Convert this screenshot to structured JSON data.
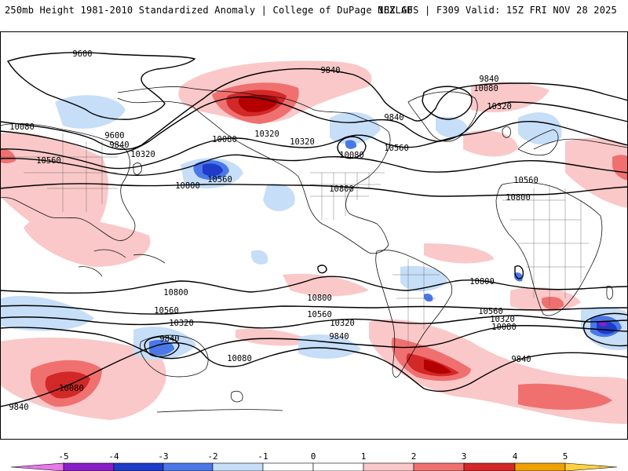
{
  "header": {
    "left": "250mb Height 1981-2010 Standardized Anomaly | College of DuPage NEXLAB",
    "right": "18Z GFS | F309 Valid: 15Z FRI NOV 28 2025"
  },
  "colors": {
    "neg5": "#e878e8",
    "neg4": "#8a1ec8",
    "neg3": "#1e3cc8",
    "neg2": "#4a78e8",
    "neg1": "#c6def8",
    "pos1": "#fac8c8",
    "pos2": "#f07070",
    "pos3": "#d22828",
    "pos4": "#b40000",
    "pos5": "#f0a000",
    "pos6": "#ffd040",
    "contour": "#000000",
    "coast": "#111111"
  },
  "contour_labels": [
    {
      "name": "label-9600-north-pacific",
      "text": "9600"
    },
    {
      "name": "label-9840-alaska",
      "text": "9840"
    },
    {
      "name": "label-9840-greenland",
      "text": "9840"
    },
    {
      "name": "label-10080-greenland",
      "text": "10080"
    },
    {
      "name": "label-10320-north-atlantic",
      "text": "10320"
    },
    {
      "name": "label-9600-kamchatka",
      "text": "9600"
    },
    {
      "name": "label-9840-kamchatka",
      "text": "9840"
    },
    {
      "name": "label-10080-far-west",
      "text": "10080"
    },
    {
      "name": "label-10320-north-pacific",
      "text": "10320"
    },
    {
      "name": "label-10080-north-pacific",
      "text": "10080"
    },
    {
      "name": "label-10320-gulf-alaska",
      "text": "10320"
    },
    {
      "name": "label-9840-hudson",
      "text": "9840"
    },
    {
      "name": "label-10320-canada",
      "text": "10320"
    },
    {
      "name": "label-10080-great-lakes",
      "text": "10080"
    },
    {
      "name": "label-10560-east-coast",
      "text": "10560"
    },
    {
      "name": "label-10560-china",
      "text": "10560"
    },
    {
      "name": "label-10560-central-pacific",
      "text": "10560"
    },
    {
      "name": "label-10800-central-pacific",
      "text": "10800"
    },
    {
      "name": "label-10800-mexico",
      "text": "10800"
    },
    {
      "name": "label-10560-sahara",
      "text": "10560"
    },
    {
      "name": "label-10800-sahara",
      "text": "10800"
    },
    {
      "name": "label-10800-south-atlantic",
      "text": "10800"
    },
    {
      "name": "label-10800-south-pacific-west",
      "text": "10800"
    },
    {
      "name": "label-10800-south-pacific-east",
      "text": "10800"
    },
    {
      "name": "label-10560-south-pacific-west",
      "text": "10560"
    },
    {
      "name": "label-10560-south-pacific-east",
      "text": "10560"
    },
    {
      "name": "label-10560-south-africa",
      "text": "10560"
    },
    {
      "name": "label-10320-tasman",
      "text": "10320"
    },
    {
      "name": "label-10320-south-pacific",
      "text": "10320"
    },
    {
      "name": "label-10320-southern-africa",
      "text": "10320"
    },
    {
      "name": "label-10080-south-indian",
      "text": "10080"
    },
    {
      "name": "label-10080-south-pacific",
      "text": "10080"
    },
    {
      "name": "label-9840-south-pacific-west",
      "text": "9840"
    },
    {
      "name": "label-9840-south-pacific-east",
      "text": "9840"
    },
    {
      "name": "label-9840-south-atlantic",
      "text": "9840"
    },
    {
      "name": "label-10080-southern-indian",
      "text": "10080"
    },
    {
      "name": "label-9840-far-southwest",
      "text": "9840"
    }
  ],
  "colorbar": {
    "ticks": [
      "-5",
      "-4",
      "-3",
      "-2",
      "-1",
      "0",
      "1",
      "2",
      "3",
      "4",
      "5"
    ]
  }
}
